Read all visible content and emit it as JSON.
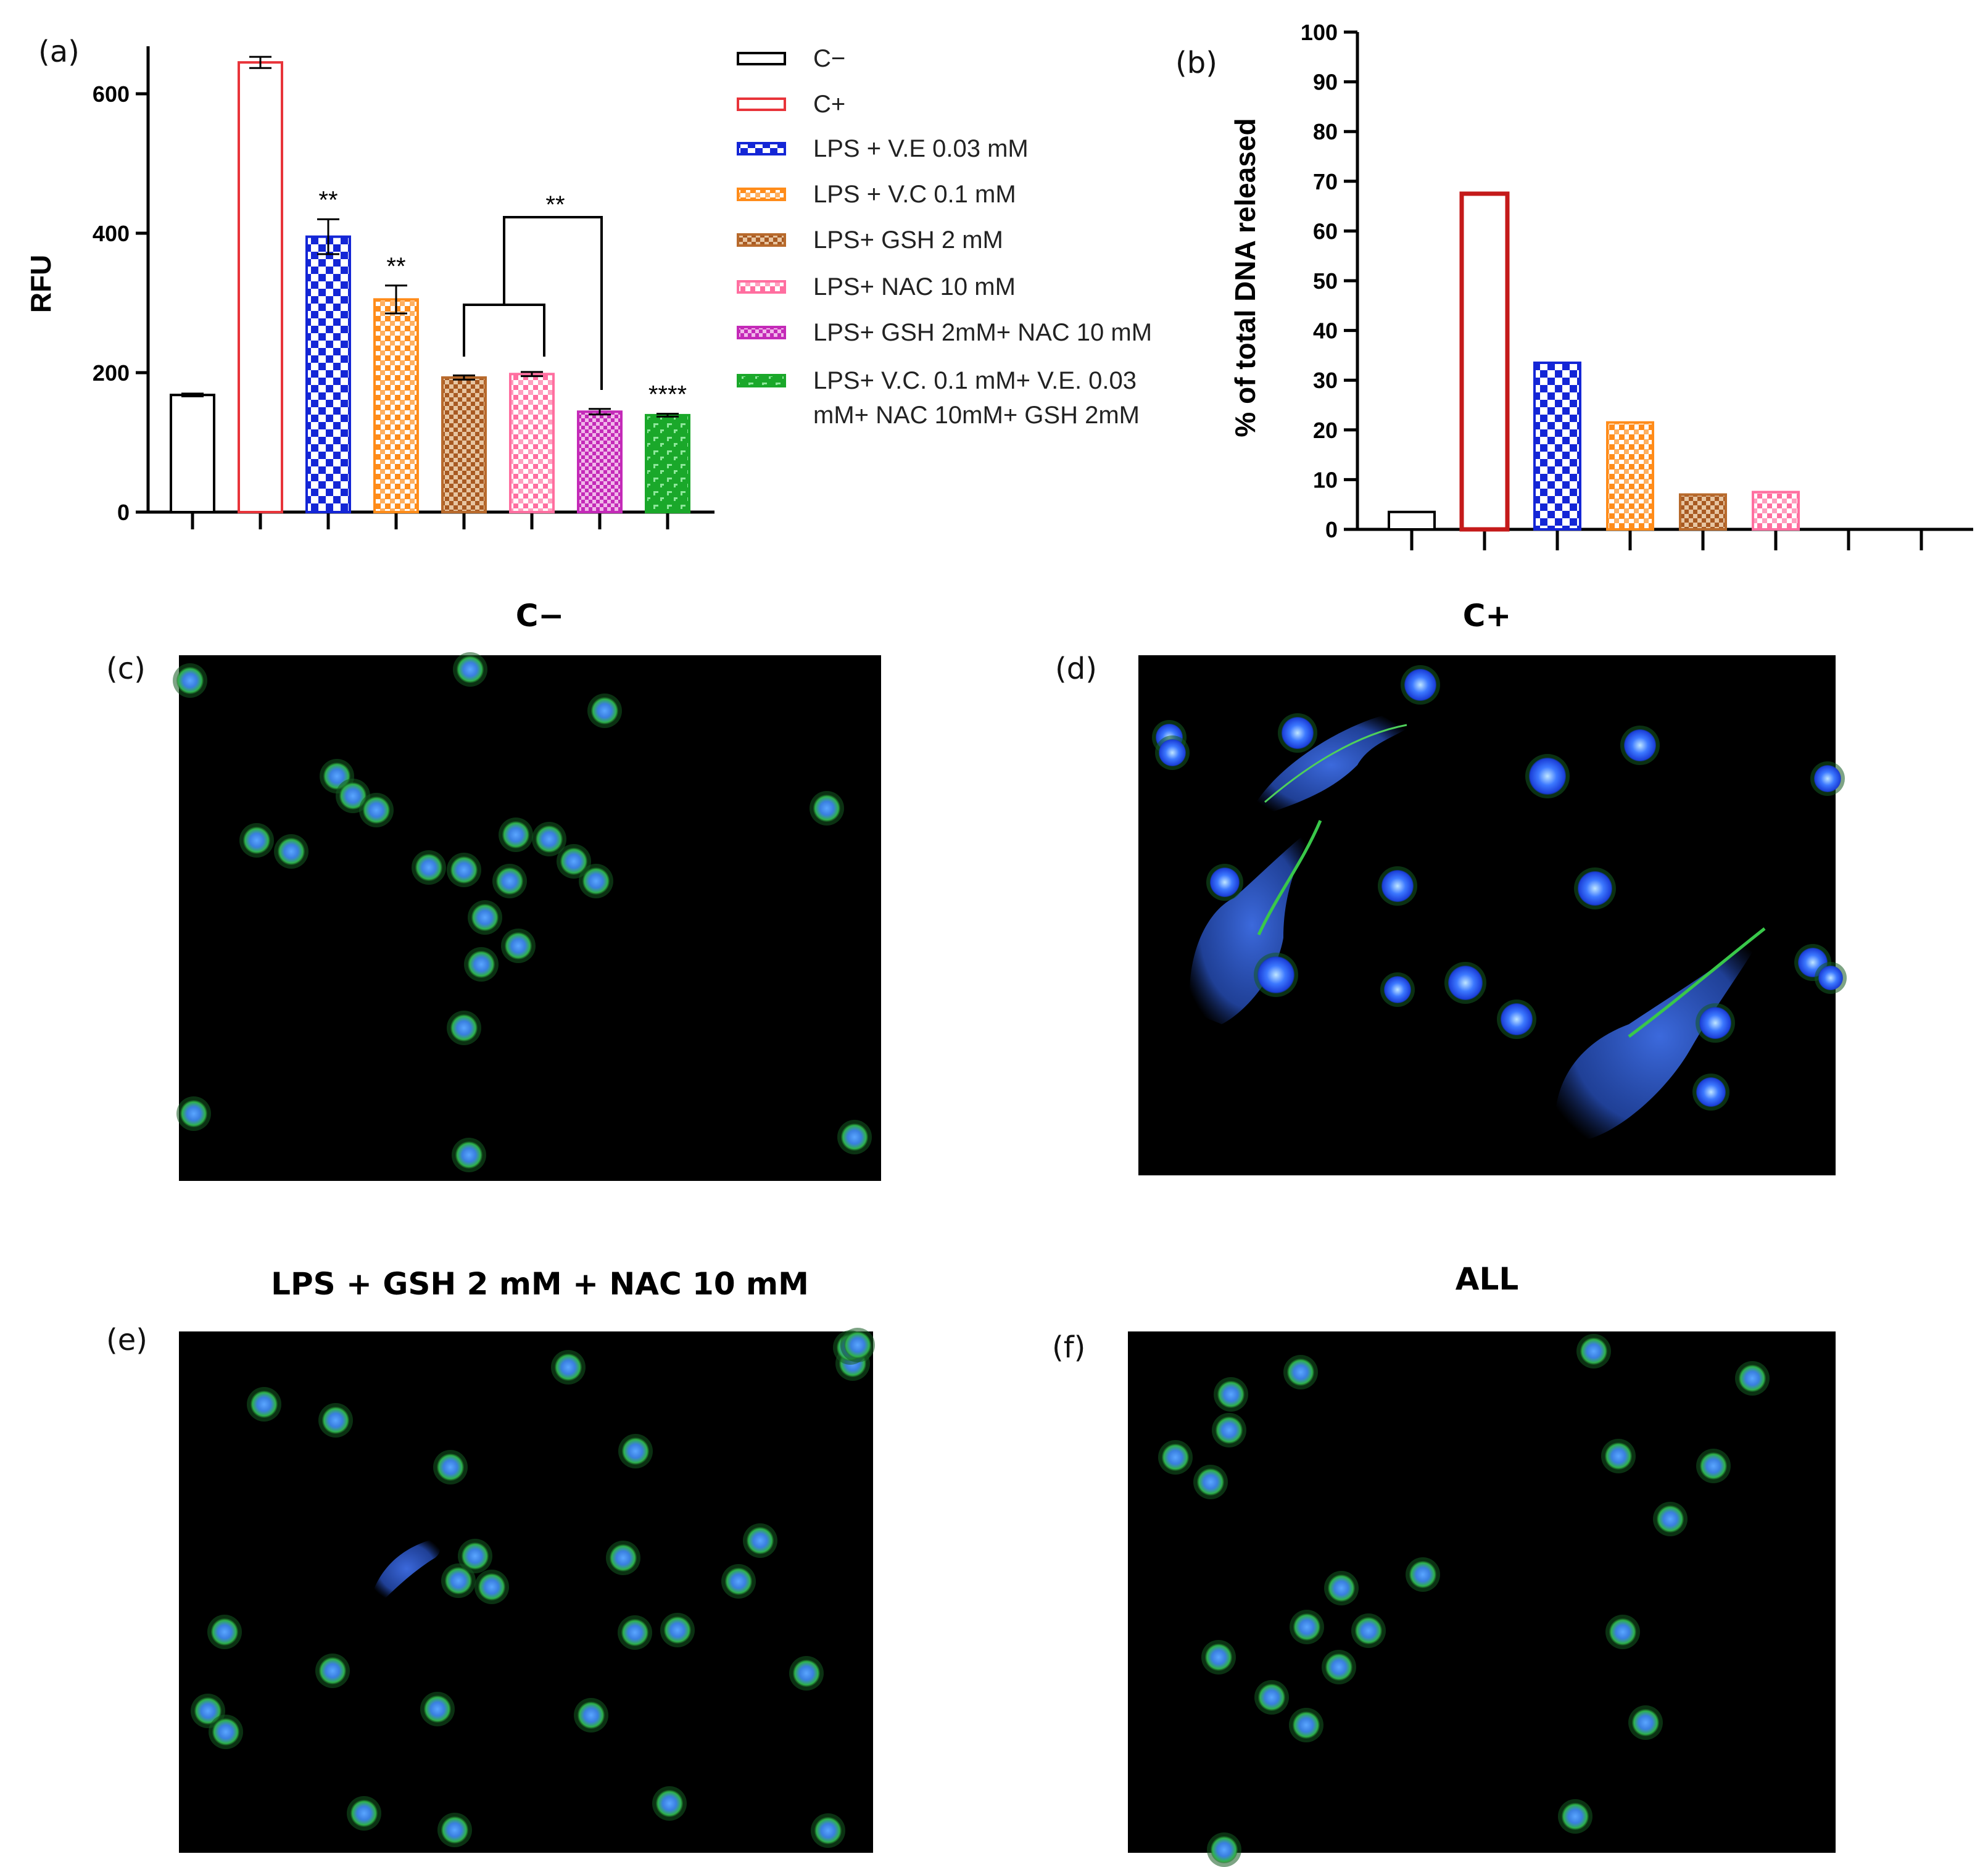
{
  "chart_data": [
    {
      "panel": "(a)",
      "type": "bar",
      "ylabel": "RFU",
      "ylim": [
        0,
        660
      ],
      "yticks": [
        0,
        200,
        400,
        600
      ],
      "categories": [
        "C-",
        "C+",
        "LPS + V.E 0.03 mM",
        "LPS + V.C 0.1 mM",
        "LPS+ GSH 2 mM",
        "LPS+ NAC 10 mM",
        "LPS+ GSH 2mM+ NAC 10 mM",
        "LPS+ V.C. 0.1 mM+ V.E. 0.03 mM+ NAC 10mM+ GSH 2mM"
      ],
      "values": [
        168,
        645,
        395,
        305,
        193,
        198,
        144,
        139
      ],
      "errors": [
        2,
        8,
        25,
        20,
        3,
        3,
        4,
        2
      ],
      "significance": [
        "",
        "",
        "**",
        "**",
        "",
        "",
        "",
        "****"
      ],
      "bracket_label": "**",
      "legend": {
        "position": "right",
        "entries": [
          "C−",
          "C+",
          "LPS + V.E 0.03 mM",
          "LPS + V.C 0.1 mM",
          "LPS+ GSH 2 mM",
          "LPS+ NAC 10 mM",
          "LPS+ GSH 2mM+ NAC 10 mM",
          "LPS+ V.C. 0.1 mM+ V.E. 0.03",
          "mM+ NAC 10mM+ GSH 2mM"
        ]
      },
      "colors": [
        "#000000",
        "#e8343a",
        "#1426d6",
        "#ff8c1a",
        "#b86a2c",
        "#ff6fa0",
        "#c42ab8",
        "#1aa82a"
      ]
    },
    {
      "panel": "(b)",
      "type": "bar",
      "ylabel": "% of total DNA released",
      "ylim": [
        0,
        100
      ],
      "yticks": [
        0,
        10,
        20,
        30,
        40,
        50,
        60,
        70,
        80,
        90,
        100
      ],
      "values": [
        3.5,
        67.5,
        33.5,
        21.5,
        7,
        7.5,
        0,
        0
      ],
      "colors": [
        "#000000",
        "#c41a1a",
        "#1426d6",
        "#ff8c1a",
        "#b86a2c",
        "#ff6fa0",
        "#c42ab8",
        "#1aa82a"
      ]
    }
  ],
  "images": [
    {
      "panel": "(c)",
      "title": "C−"
    },
    {
      "panel": "(d)",
      "title": "C+"
    },
    {
      "panel": "(e)",
      "title": "LPS + GSH 2 mM + NAC 10 mM"
    },
    {
      "panel": "(f)",
      "title": "ALL"
    }
  ]
}
